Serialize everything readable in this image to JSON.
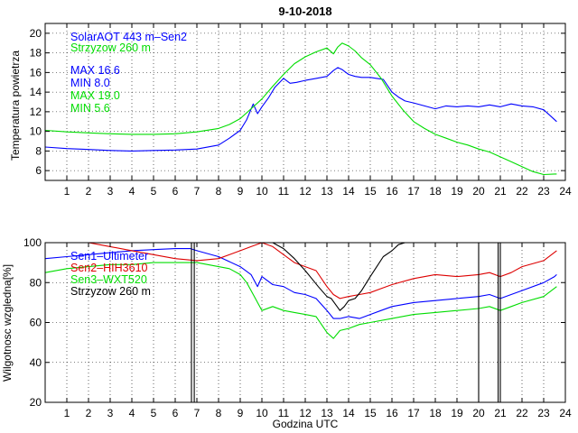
{
  "chart_data": [
    {
      "type": "line",
      "title": "9-10-2018",
      "xlabel": "",
      "ylabel": "Temperatura powietrza",
      "xlim": [
        0,
        24
      ],
      "ylim": [
        5,
        21
      ],
      "xticks": [
        1,
        2,
        3,
        4,
        5,
        6,
        7,
        8,
        9,
        10,
        11,
        12,
        13,
        14,
        15,
        16,
        17,
        18,
        19,
        20,
        21,
        22,
        23,
        24
      ],
      "yticks": [
        6,
        8,
        10,
        12,
        14,
        16,
        18,
        20
      ],
      "grid": true,
      "legend_position": "top-left",
      "annotations": [
        {
          "text": "SolarAOT 443 m–Sen2",
          "color": "#0000ff"
        },
        {
          "text": "Strzyzow 260 m",
          "color": "#00dd00"
        },
        {
          "text": "MAX 16.6",
          "color": "#0000ff"
        },
        {
          "text": "MIN 8.0",
          "color": "#0000ff"
        },
        {
          "text": "MAX 19.0",
          "color": "#00dd00"
        },
        {
          "text": "MIN 5.6",
          "color": "#00dd00"
        }
      ],
      "series": [
        {
          "name": "SolarAOT 443 m-Sen2",
          "color": "#0000ff",
          "x": [
            0,
            1,
            2,
            3,
            4,
            5,
            6,
            7,
            8,
            8.5,
            9,
            9.3,
            9.6,
            9.8,
            10,
            10.3,
            10.6,
            11,
            11.3,
            11.6,
            12,
            12.5,
            13,
            13.3,
            13.5,
            13.7,
            14,
            14.3,
            14.6,
            15,
            15.3,
            15.6,
            16,
            16.3,
            16.6,
            17,
            17.5,
            18,
            18.5,
            19,
            19.5,
            20,
            20.5,
            21,
            21.5,
            22,
            22.5,
            23,
            23.3,
            23.6
          ],
          "y": [
            8.4,
            8.25,
            8.15,
            8.05,
            8.0,
            8.05,
            8.1,
            8.2,
            8.6,
            9.3,
            10.1,
            11.2,
            12.8,
            11.8,
            12.5,
            13.4,
            14.5,
            15.4,
            14.9,
            15.0,
            15.2,
            15.4,
            15.6,
            16.2,
            16.5,
            16.3,
            15.8,
            15.6,
            15.5,
            15.5,
            15.4,
            15.3,
            14.0,
            13.5,
            13.1,
            12.9,
            12.6,
            12.3,
            12.6,
            12.5,
            12.6,
            12.5,
            12.7,
            12.5,
            12.8,
            12.6,
            12.5,
            12.2,
            11.6,
            11.0
          ]
        },
        {
          "name": "Strzyzow 260 m",
          "color": "#00dd00",
          "x": [
            0,
            1,
            2,
            3,
            4,
            5,
            6,
            7,
            8,
            8.5,
            9,
            9.5,
            10,
            10.5,
            11,
            11.5,
            12,
            12.5,
            13,
            13.3,
            13.5,
            13.7,
            14,
            14.3,
            14.6,
            15,
            15.5,
            16,
            16.5,
            17,
            17.5,
            18,
            18.5,
            19,
            19.5,
            20,
            20.5,
            21,
            21.5,
            22,
            22.5,
            23,
            23.5,
            23.6
          ],
          "y": [
            10.1,
            9.95,
            9.85,
            9.75,
            9.7,
            9.7,
            9.75,
            9.95,
            10.3,
            10.7,
            11.3,
            12.3,
            13.3,
            14.6,
            15.8,
            16.9,
            17.6,
            18.1,
            18.5,
            17.9,
            18.6,
            19.0,
            18.7,
            18.2,
            17.5,
            16.8,
            15.4,
            13.6,
            12.2,
            11.0,
            10.3,
            9.7,
            9.3,
            8.9,
            8.6,
            8.2,
            7.9,
            7.4,
            6.9,
            6.4,
            5.9,
            5.6,
            5.65,
            5.65
          ]
        }
      ]
    },
    {
      "type": "line",
      "title": "",
      "xlabel": "Godzina UTC",
      "ylabel": "Wilgotnosc wzgledna[%]",
      "xlim": [
        0,
        24
      ],
      "ylim": [
        20,
        100
      ],
      "xticks": [
        1,
        2,
        3,
        4,
        5,
        6,
        7,
        8,
        9,
        10,
        11,
        12,
        13,
        14,
        15,
        16,
        17,
        18,
        19,
        20,
        21,
        22,
        23,
        24
      ],
      "yticks": [
        20,
        40,
        60,
        80,
        100
      ],
      "grid": true,
      "legend_position": "top-left",
      "legend": [
        {
          "text": "Sen1–Ultimeter",
          "color": "#0000ff"
        },
        {
          "text": "Sen2–HIH3610",
          "color": "#dd0000"
        },
        {
          "text": "Sen3–WXT520",
          "color": "#00dd00"
        },
        {
          "text": "Strzyzow 260 m",
          "color": "#000000"
        }
      ],
      "series": [
        {
          "name": "Sen1-Ultimeter",
          "color": "#0000ff",
          "x": [
            0,
            1,
            2,
            3,
            4,
            5,
            6,
            6.7,
            7,
            8,
            9,
            9.5,
            9.8,
            10,
            10.5,
            11,
            11.5,
            12,
            12.5,
            13,
            13.3,
            13.6,
            14,
            14.5,
            15,
            15.5,
            16,
            17,
            18,
            19,
            20,
            20.5,
            21,
            21.5,
            22,
            23,
            23.5,
            23.6
          ],
          "y": [
            92,
            93,
            94,
            95,
            96,
            96.5,
            97,
            97,
            96,
            93,
            88,
            84,
            78,
            83,
            79,
            78,
            75,
            74,
            72,
            66,
            62,
            62,
            63,
            62,
            64,
            66,
            68,
            70,
            71,
            72,
            73,
            74,
            72,
            74,
            76,
            80,
            83,
            84
          ]
        },
        {
          "name": "Sen2-HIH3610",
          "color": "#dd0000",
          "x": [
            0,
            1,
            2,
            2.5,
            3,
            4,
            5,
            6,
            7,
            8,
            9,
            9.5,
            10,
            10.5,
            11,
            11.5,
            12,
            12.5,
            13,
            13.3,
            13.6,
            14,
            14.5,
            15,
            15.5,
            16,
            17,
            18,
            19,
            20,
            20.5,
            21,
            21.5,
            22,
            23,
            23.6
          ],
          "y": [
            100,
            100,
            100,
            99,
            98,
            96,
            94,
            92,
            91,
            92,
            96,
            98,
            100,
            98,
            94,
            90,
            88,
            86,
            78,
            74,
            72,
            73,
            74,
            75,
            77,
            79,
            82,
            84,
            83,
            84,
            85,
            83,
            85,
            88,
            91,
            96
          ]
        },
        {
          "name": "Sen3-WXT520",
          "color": "#00dd00",
          "x": [
            0,
            1,
            2,
            3,
            4,
            5,
            6,
            7,
            8,
            8.5,
            9,
            9.3,
            9.6,
            10,
            10.5,
            11,
            11.5,
            12,
            12.5,
            13,
            13.3,
            13.6,
            14,
            14.5,
            15,
            16,
            17,
            18,
            19,
            20,
            20.5,
            21,
            21.5,
            22,
            23,
            23.6
          ],
          "y": [
            85,
            87,
            88,
            89,
            89,
            90,
            90,
            90,
            88,
            87,
            84,
            80,
            74,
            66,
            68,
            66,
            65,
            64,
            63,
            55,
            52,
            56,
            57,
            59,
            60,
            62,
            64,
            65,
            66,
            67,
            68,
            66,
            68,
            70,
            73,
            78
          ]
        },
        {
          "name": "Strzyzow 260 m",
          "color": "#000000",
          "x": [
            10.5,
            11,
            11.5,
            12,
            12.3,
            12.6,
            13,
            13.2,
            13.4,
            13.6,
            13.8,
            14,
            14.3,
            14.6,
            15,
            15.3,
            15.6,
            16,
            16.3,
            16.6
          ],
          "y": [
            100,
            97,
            92,
            86,
            82,
            78,
            73,
            72,
            69,
            66,
            68,
            71,
            72,
            76,
            83,
            88,
            93,
            96,
            99,
            100
          ]
        },
        {
          "name": "Strzyzow 260 m (spikes)",
          "color": "#000000",
          "x": [
            6.75,
            6.75,
            6.75,
            6.88,
            6.88,
            6.88,
            20.0,
            20.0,
            20.0,
            20.9,
            20.9,
            20.9,
            21.0,
            21.0,
            21.0
          ],
          "y": [
            100,
            20,
            100,
            100,
            20,
            100,
            100,
            20,
            100,
            100,
            20,
            100,
            100,
            20,
            100
          ]
        }
      ]
    }
  ]
}
